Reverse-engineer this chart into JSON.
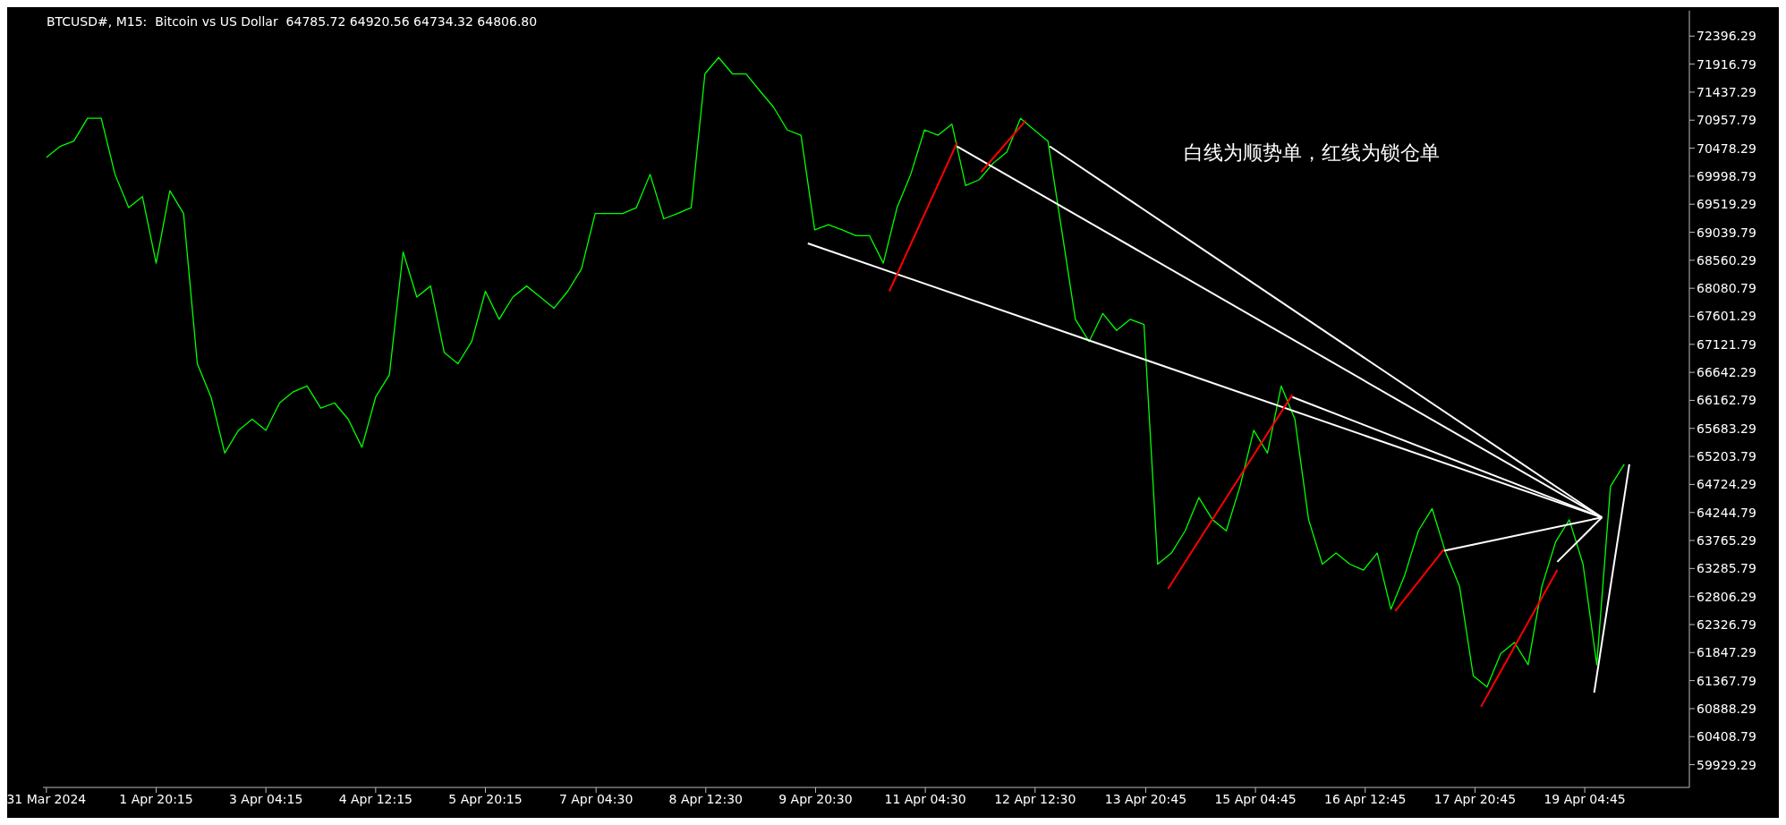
{
  "chart_data": {
    "type": "line",
    "title": "BTCUSD#, M15:  Bitcoin vs US Dollar  64785.72 64920.56 64734.32 64806.80",
    "annotations": [
      "白线为顺势单，红线为锁仓单"
    ],
    "x": [
      "2024-03-31T12:15",
      "2024-03-31T16:15",
      "2024-03-31T20:15",
      "2024-04-01T00:15",
      "2024-04-01T04:15",
      "2024-04-01T08:15",
      "2024-04-01T12:15",
      "2024-04-01T16:15",
      "2024-04-01T20:15",
      "2024-04-02T00:15",
      "2024-04-02T04:15",
      "2024-04-02T08:15",
      "2024-04-02T12:15",
      "2024-04-02T16:15",
      "2024-04-02T20:15",
      "2024-04-03T00:15",
      "2024-04-03T04:15",
      "2024-04-03T08:15",
      "2024-04-03T12:15",
      "2024-04-03T16:15",
      "2024-04-03T20:15",
      "2024-04-04T00:15",
      "2024-04-04T04:15",
      "2024-04-04T08:15",
      "2024-04-04T12:15",
      "2024-04-04T16:15",
      "2024-04-04T20:15",
      "2024-04-05T00:15",
      "2024-04-05T04:15",
      "2024-04-05T08:15",
      "2024-04-05T12:15",
      "2024-04-05T16:15",
      "2024-04-05T20:15",
      "2024-04-06T00:15",
      "2024-04-06T04:15",
      "2024-04-06T08:15",
      "2024-04-06T12:15",
      "2024-04-06T16:15",
      "2024-04-06T20:15",
      "2024-04-07T00:15",
      "2024-04-07T04:15",
      "2024-04-07T08:15",
      "2024-04-07T12:15",
      "2024-04-07T16:15",
      "2024-04-07T20:15",
      "2024-04-08T00:15",
      "2024-04-08T04:15",
      "2024-04-08T08:15",
      "2024-04-08T12:15",
      "2024-04-08T16:15",
      "2024-04-08T20:15",
      "2024-04-09T00:15",
      "2024-04-09T04:15",
      "2024-04-09T08:15",
      "2024-04-09T12:15",
      "2024-04-09T16:15",
      "2024-04-09T20:15",
      "2024-04-10T00:15",
      "2024-04-10T04:15",
      "2024-04-10T08:15",
      "2024-04-10T12:15",
      "2024-04-10T16:15",
      "2024-04-10T20:15",
      "2024-04-11T00:15",
      "2024-04-11T04:15",
      "2024-04-11T08:15",
      "2024-04-11T12:15",
      "2024-04-11T16:15",
      "2024-04-11T20:15",
      "2024-04-12T00:15",
      "2024-04-12T04:15",
      "2024-04-12T08:15",
      "2024-04-12T12:15",
      "2024-04-12T16:15",
      "2024-04-12T20:15",
      "2024-04-13T00:15",
      "2024-04-13T04:15",
      "2024-04-13T08:15",
      "2024-04-13T12:15",
      "2024-04-13T16:15",
      "2024-04-13T20:15",
      "2024-04-14T00:15",
      "2024-04-14T04:15",
      "2024-04-14T08:15",
      "2024-04-14T12:15",
      "2024-04-14T16:15",
      "2024-04-14T20:15",
      "2024-04-15T00:15",
      "2024-04-15T04:15",
      "2024-04-15T08:15",
      "2024-04-15T12:15",
      "2024-04-15T16:15",
      "2024-04-15T20:15",
      "2024-04-16T00:15",
      "2024-04-16T04:15",
      "2024-04-16T08:15",
      "2024-04-16T12:15",
      "2024-04-16T16:15",
      "2024-04-16T20:15",
      "2024-04-17T00:15",
      "2024-04-17T04:15",
      "2024-04-17T08:15",
      "2024-04-17T12:15",
      "2024-04-17T16:15",
      "2024-04-17T20:15",
      "2024-04-18T00:15",
      "2024-04-18T04:15",
      "2024-04-18T08:15",
      "2024-04-18T12:15",
      "2024-04-18T16:15",
      "2024-04-18T20:15",
      "2024-04-19T00:15",
      "2024-04-19T04:15",
      "2024-04-19T08:15",
      "2024-04-19T12:15",
      "2024-04-19T16:15"
    ],
    "series": [
      {
        "color": "#00ff00",
        "values": [
          70320,
          70510,
          70600,
          70990,
          70990,
          70030,
          69460,
          69650,
          68510,
          69750,
          69360,
          66790,
          66220,
          65260,
          65650,
          65840,
          65650,
          66120,
          66310,
          66410,
          66030,
          66120,
          65840,
          65360,
          66220,
          66600,
          68700,
          67930,
          68120,
          66980,
          66790,
          67170,
          68030,
          67550,
          67930,
          68120,
          67930,
          67740,
          68030,
          68410,
          69360,
          69360,
          69360,
          69460,
          70030,
          69270,
          69360,
          69460,
          71750,
          72030,
          71750,
          71750,
          71460,
          71180,
          70790,
          70700,
          69080,
          69170,
          69080,
          68980,
          68980,
          68510,
          69460,
          70030,
          70790,
          70700,
          70890,
          69840,
          69940,
          70220,
          70410,
          70990,
          70790,
          70600,
          69080,
          67550,
          67170,
          67650,
          67360,
          67550,
          67460,
          63360,
          63550,
          63930,
          64500,
          64120,
          63930,
          64690,
          65650,
          65260,
          66410,
          65840,
          64120,
          63360,
          63550,
          63360,
          63260,
          63550,
          62590,
          63170,
          63930,
          64310,
          63550,
          62980,
          61450,
          61260,
          61830,
          62020,
          61640,
          62980,
          63740,
          64120,
          63360,
          61640,
          64690,
          65070
        ]
      },
      {
        "type": "line",
        "color": "#ffffff",
        "x": [
          "2024-04-09T18:15",
          "2024-04-19T09:45"
        ],
        "values": [
          68850,
          64160
        ]
      },
      {
        "type": "line",
        "color": "#ffffff",
        "x": [
          "2024-04-11T13:45",
          "2024-04-19T09:45"
        ],
        "values": [
          70510,
          64160
        ]
      },
      {
        "type": "line",
        "color": "#ffffff",
        "x": [
          "2024-04-12T16:45",
          "2024-04-19T09:45"
        ],
        "values": [
          70510,
          64160
        ]
      },
      {
        "type": "line",
        "color": "#ffffff",
        "x": [
          "2024-04-15T15:30",
          "2024-04-19T09:45"
        ],
        "values": [
          66220,
          64160
        ]
      },
      {
        "type": "line",
        "color": "#ffffff",
        "x": [
          "2024-04-17T11:45",
          "2024-04-19T09:45"
        ],
        "values": [
          63590,
          64160
        ]
      },
      {
        "type": "line",
        "color": "#ffffff",
        "x": [
          "2024-04-18T20:45",
          "2024-04-19T09:45"
        ],
        "values": [
          63400,
          64160
        ]
      },
      {
        "type": "line",
        "color": "#ffffff",
        "x": [
          "2024-04-19T07:30",
          "2024-04-19T17:45"
        ],
        "values": [
          61160,
          65070
        ]
      },
      {
        "type": "line",
        "color": "#ff0000",
        "x": [
          "2024-04-10T18:00",
          "2024-04-11T13:45"
        ],
        "values": [
          68030,
          70570
        ]
      },
      {
        "type": "line",
        "color": "#ff0000",
        "x": [
          "2024-04-11T20:45",
          "2024-04-12T09:45"
        ],
        "values": [
          70070,
          70950
        ]
      },
      {
        "type": "line",
        "color": "#ff0000",
        "x": [
          "2024-04-14T03:15",
          "2024-04-15T15:30"
        ],
        "values": [
          62940,
          66260
        ]
      },
      {
        "type": "line",
        "color": "#ff0000",
        "x": [
          "2024-04-16T21:30",
          "2024-04-17T11:45"
        ],
        "values": [
          62560,
          63620
        ]
      },
      {
        "type": "line",
        "color": "#ff0000",
        "x": [
          "2024-04-17T22:30",
          "2024-04-18T20:45"
        ],
        "values": [
          60920,
          63260
        ]
      }
    ],
    "xlim": [
      "2024-03-31T11:15",
      "2024-04-20T11:15"
    ],
    "xticks": [
      {
        "value": "2024-03-31T12:15",
        "label": "31 Mar 2024"
      },
      {
        "value": "2024-04-01T20:15",
        "label": "1 Apr 20:15"
      },
      {
        "value": "2024-04-03T04:15",
        "label": "3 Apr 04:15"
      },
      {
        "value": "2024-04-04T12:15",
        "label": "4 Apr 12:15"
      },
      {
        "value": "2024-04-05T20:15",
        "label": "5 Apr 20:15"
      },
      {
        "value": "2024-04-07T04:30",
        "label": "7 Apr 04:30"
      },
      {
        "value": "2024-04-08T12:30",
        "label": "8 Apr 12:30"
      },
      {
        "value": "2024-04-09T20:30",
        "label": "9 Apr 20:30"
      },
      {
        "value": "2024-04-11T04:30",
        "label": "11 Apr 04:30"
      },
      {
        "value": "2024-04-12T12:30",
        "label": "12 Apr 12:30"
      },
      {
        "value": "2024-04-13T20:45",
        "label": "13 Apr 20:45"
      },
      {
        "value": "2024-04-15T04:45",
        "label": "15 Apr 04:45"
      },
      {
        "value": "2024-04-16T12:45",
        "label": "16 Apr 12:45"
      },
      {
        "value": "2024-04-17T20:45",
        "label": "17 Apr 20:45"
      },
      {
        "value": "2024-04-19T04:45",
        "label": "19 Apr 04:45"
      }
    ],
    "ylim": [
      59540,
      72830
    ],
    "yticks": [
      59929.29,
      60408.79,
      60888.29,
      61367.79,
      61847.29,
      62326.79,
      62806.29,
      63285.79,
      63765.29,
      64244.79,
      64724.29,
      65203.79,
      65683.29,
      66162.79,
      66642.29,
      67121.79,
      67601.29,
      68080.79,
      68560.29,
      69039.79,
      69519.29,
      69998.79,
      70478.29,
      70957.79,
      71437.29,
      71916.79,
      72396.29
    ],
    "tick_labels": "xy"
  }
}
